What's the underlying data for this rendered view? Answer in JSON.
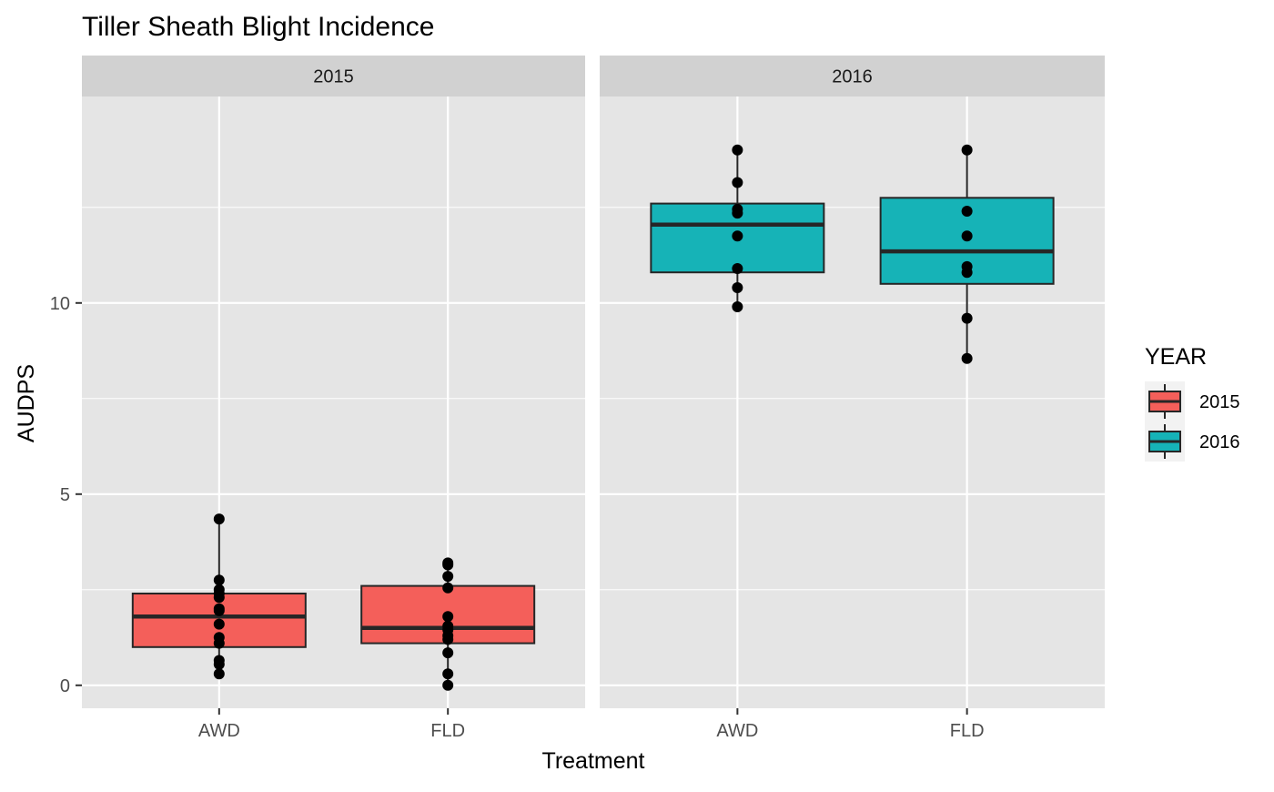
{
  "chart_data": {
    "type": "boxplot",
    "title": "Tiller Sheath Blight Incidence",
    "xlabel": "Treatment",
    "ylabel": "AUDPS",
    "ylim": [
      -0.6,
      15.4
    ],
    "y_ticks": [
      0,
      5,
      10
    ],
    "categories": [
      "AWD",
      "FLD"
    ],
    "facets": [
      {
        "label": "2015",
        "groups": [
          {
            "category": "AWD",
            "box": {
              "min": 0.3,
              "q1": 1.0,
              "median": 1.8,
              "q3": 2.4,
              "max": 4.35
            },
            "points": [
              0.3,
              0.55,
              0.65,
              1.1,
              1.25,
              1.6,
              1.95,
              2.0,
              2.3,
              2.4,
              2.5,
              2.75,
              4.35
            ]
          },
          {
            "category": "FLD",
            "box": {
              "min": 0.0,
              "q1": 1.1,
              "median": 1.5,
              "q3": 2.6,
              "max": 3.2
            },
            "points": [
              0.0,
              0.3,
              0.85,
              1.2,
              1.3,
              1.45,
              1.55,
              1.8,
              2.55,
              2.85,
              3.15,
              3.2
            ]
          }
        ]
      },
      {
        "label": "2016",
        "groups": [
          {
            "category": "AWD",
            "box": {
              "min": 9.9,
              "q1": 10.8,
              "median": 12.05,
              "q3": 12.6,
              "max": 14.0
            },
            "points": [
              9.9,
              10.4,
              10.9,
              11.75,
              12.35,
              12.45,
              13.15,
              14.0
            ]
          },
          {
            "category": "FLD",
            "box": {
              "min": 8.55,
              "q1": 10.5,
              "median": 11.35,
              "q3": 12.75,
              "max": 14.0
            },
            "points": [
              8.55,
              9.6,
              10.8,
              10.95,
              11.75,
              12.4,
              14.0
            ]
          }
        ]
      }
    ],
    "legend": {
      "title": "YEAR",
      "position": "right",
      "entries": [
        {
          "label": "2015",
          "color": "#F45F5A"
        },
        {
          "label": "2016",
          "color": "#16B3B7"
        }
      ]
    },
    "colors": {
      "2015": "#F45F5A",
      "2016": "#16B3B7",
      "panel_bg": "#E5E5E5",
      "strip_bg": "#D1D1D1",
      "grid": "#FFFFFF",
      "box_stroke": "#262626",
      "point": "#000000"
    },
    "grid": true
  }
}
